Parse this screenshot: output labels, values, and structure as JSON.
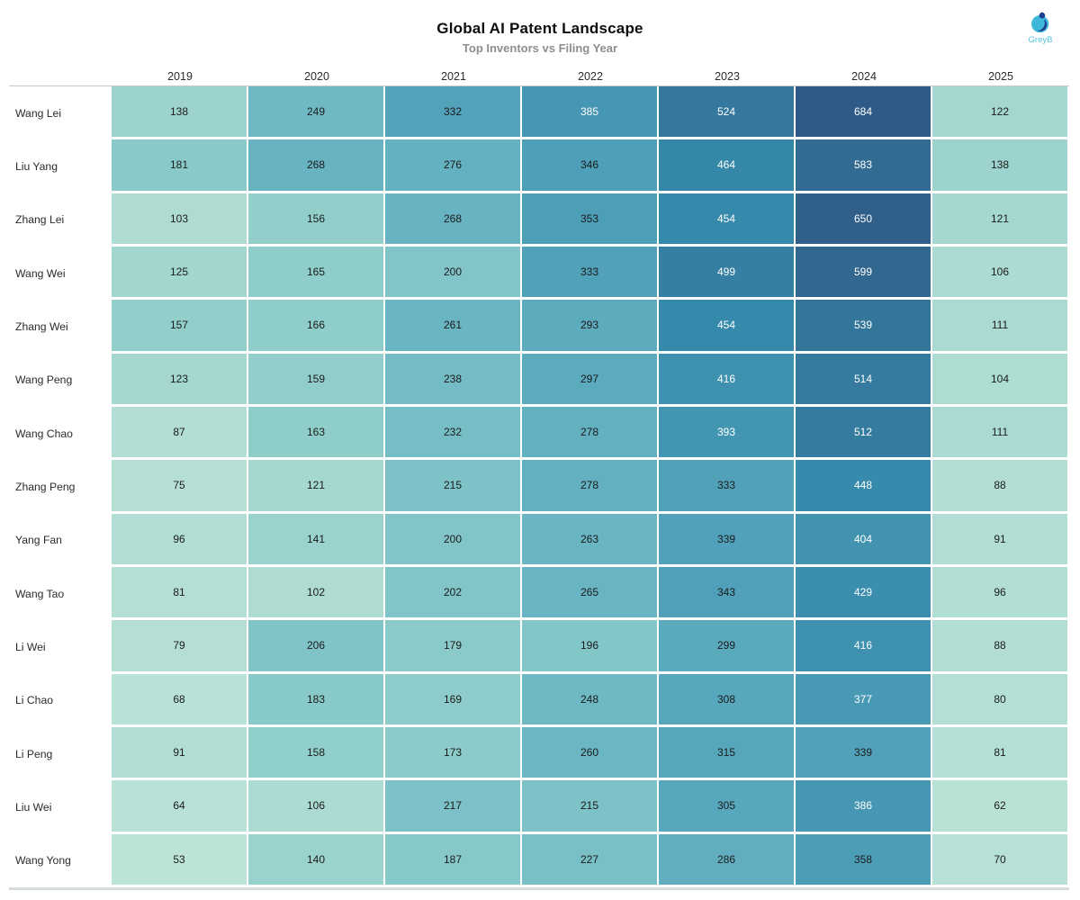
{
  "header": {
    "title": "Global AI Patent Landscape",
    "subtitle": "Top Inventors vs Filing Year",
    "logo_text": "GreyB"
  },
  "colors": {
    "divider": "#c9c9c9",
    "bottom_rule": "#d6dbdb",
    "subtitle_text": "#8e8e8e",
    "logo_light_blue": "#3eb7d8",
    "logo_dark_blue": "#1d3d91",
    "logo_text_color": "#55c4de",
    "cell_text_dark": "#1b1b1b",
    "cell_text_light": "#ffffff"
  },
  "chart_data": {
    "type": "heatmap",
    "title": "Global AI Patent Landscape",
    "subtitle": "Top Inventors vs Filing Year",
    "columns": [
      "2019",
      "2020",
      "2021",
      "2022",
      "2023",
      "2024",
      "2025"
    ],
    "rows": [
      {
        "name": "Wang Lei",
        "values": [
          138,
          249,
          332,
          385,
          524,
          684,
          122
        ]
      },
      {
        "name": "Liu Yang",
        "values": [
          181,
          268,
          276,
          346,
          464,
          583,
          138
        ]
      },
      {
        "name": "Zhang Lei",
        "values": [
          103,
          156,
          268,
          353,
          454,
          650,
          121
        ]
      },
      {
        "name": "Wang Wei",
        "values": [
          125,
          165,
          200,
          333,
          499,
          599,
          106
        ]
      },
      {
        "name": "Zhang Wei",
        "values": [
          157,
          166,
          261,
          293,
          454,
          539,
          111
        ]
      },
      {
        "name": "Wang Peng",
        "values": [
          123,
          159,
          238,
          297,
          416,
          514,
          104
        ]
      },
      {
        "name": "Wang Chao",
        "values": [
          87,
          163,
          232,
          278,
          393,
          512,
          111
        ]
      },
      {
        "name": "Zhang Peng",
        "values": [
          75,
          121,
          215,
          278,
          333,
          448,
          88
        ]
      },
      {
        "name": "Yang Fan",
        "values": [
          96,
          141,
          200,
          263,
          339,
          404,
          91
        ]
      },
      {
        "name": "Wang Tao",
        "values": [
          81,
          102,
          202,
          265,
          343,
          429,
          96
        ]
      },
      {
        "name": "Li Wei",
        "values": [
          79,
          206,
          179,
          196,
          299,
          416,
          88
        ]
      },
      {
        "name": "Li Chao",
        "values": [
          68,
          183,
          169,
          248,
          308,
          377,
          80
        ]
      },
      {
        "name": "Li Peng",
        "values": [
          91,
          158,
          173,
          260,
          315,
          339,
          81
        ]
      },
      {
        "name": "Liu Wei",
        "values": [
          64,
          106,
          217,
          215,
          305,
          386,
          62
        ]
      },
      {
        "name": "Wang Yong",
        "values": [
          53,
          140,
          187,
          227,
          286,
          358,
          70
        ]
      }
    ],
    "value_range": [
      53,
      684
    ],
    "color_stops": [
      [
        53,
        "#bce3d8"
      ],
      [
        103,
        "#aedcd3"
      ],
      [
        156,
        "#92cfcb"
      ],
      [
        232,
        "#76bec6"
      ],
      [
        305,
        "#58a8bd"
      ],
      [
        454,
        "#3589aa"
      ],
      [
        599,
        "#32688f"
      ],
      [
        684,
        "#2e5a87"
      ]
    ],
    "grid": "white-gaps",
    "legend_position": "none"
  }
}
